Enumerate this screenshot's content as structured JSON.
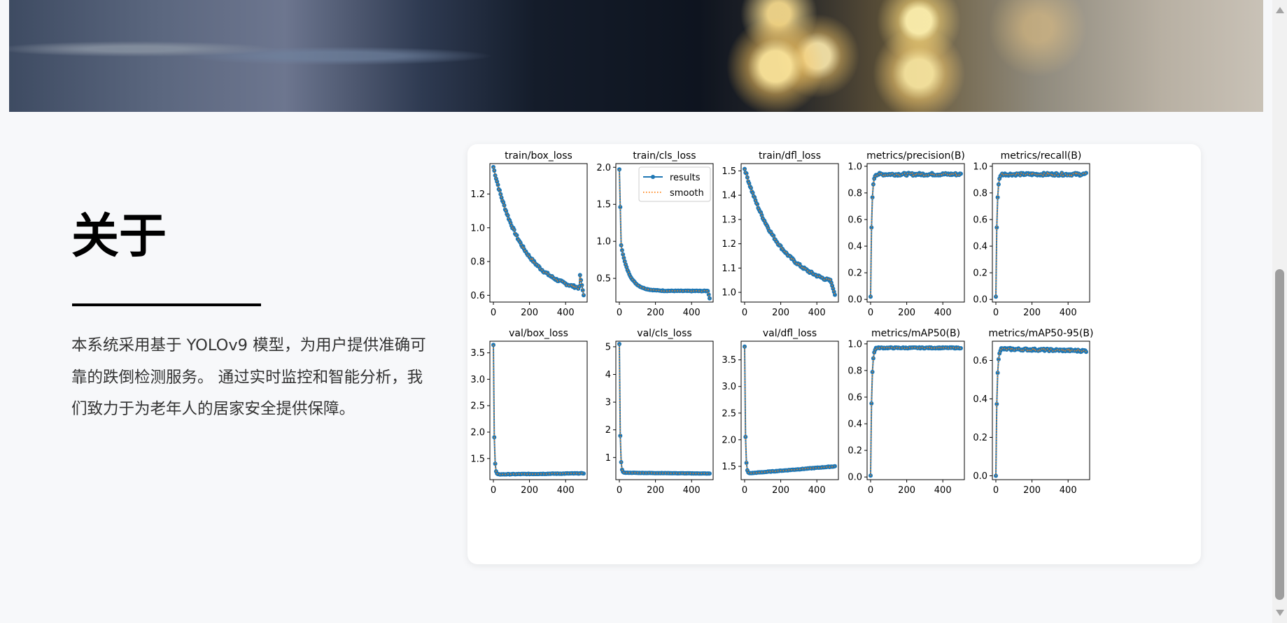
{
  "about": {
    "title": "关于",
    "description": "本系统采用基于 YOLOv9 模型，为用户提供准确可靠的跌倒检测服务。 通过实时监控和智能分析，我们致力于为老年人的居家安全提供保障。"
  },
  "colors": {
    "series": "#1f77b4",
    "smooth": "#ff7f0e",
    "page_background": "#f7f8fa"
  },
  "chart_data": [
    {
      "type": "line",
      "title": "train/box_loss",
      "xlim": [
        0,
        500
      ],
      "ylim": [
        0.56,
        1.38
      ],
      "xticks": [
        0,
        200,
        400
      ],
      "yticks": [
        0.6,
        0.8,
        1.0,
        1.2
      ],
      "shape": "decay",
      "start": 1.36,
      "end": 0.6,
      "rate": 0.006,
      "hook_to": 0.72,
      "drop_to": 0.6
    },
    {
      "type": "line",
      "title": "train/cls_loss",
      "xlim": [
        0,
        500
      ],
      "ylim": [
        0.18,
        2.05
      ],
      "xticks": [
        0,
        200,
        400
      ],
      "yticks": [
        0.5,
        1.0,
        1.5,
        2.0
      ],
      "shape": "fastdecay",
      "start": 1.97,
      "end": 0.33,
      "mid": 0.55,
      "drop_to": 0.23,
      "legend": {
        "position": "top-right",
        "entries": [
          "results",
          "smooth"
        ]
      }
    },
    {
      "type": "line",
      "title": "train/dfl_loss",
      "xlim": [
        0,
        500
      ],
      "ylim": [
        0.96,
        1.53
      ],
      "xticks": [
        0,
        200,
        400
      ],
      "yticks": [
        1.0,
        1.1,
        1.2,
        1.3,
        1.4,
        1.5
      ],
      "shape": "decay",
      "start": 1.51,
      "end": 1.0,
      "rate": 0.005,
      "hook_to": 1.04,
      "drop_to": 0.99
    },
    {
      "type": "line",
      "title": "metrics/precision(B)",
      "xlim": [
        0,
        500
      ],
      "ylim": [
        -0.02,
        1.02
      ],
      "xticks": [
        0,
        200,
        400
      ],
      "yticks": [
        0.0,
        0.2,
        0.4,
        0.6,
        0.8,
        1.0
      ],
      "shape": "rise",
      "start": 0.02,
      "plateau": 0.94,
      "noise": 0.01
    },
    {
      "type": "line",
      "title": "metrics/recall(B)",
      "xlim": [
        0,
        500
      ],
      "ylim": [
        -0.02,
        1.02
      ],
      "xticks": [
        0,
        200,
        400
      ],
      "yticks": [
        0.0,
        0.2,
        0.4,
        0.6,
        0.8,
        1.0
      ],
      "shape": "rise",
      "start": 0.02,
      "plateau": 0.94,
      "noise": 0.01
    },
    {
      "type": "line",
      "title": "val/box_loss",
      "xlim": [
        0,
        500
      ],
      "ylim": [
        1.1,
        3.72
      ],
      "xticks": [
        0,
        200,
        400
      ],
      "yticks": [
        1.5,
        2.0,
        2.5,
        3.0,
        3.5
      ],
      "shape": "spike",
      "start": 3.65,
      "floor": 1.2,
      "end": 1.22
    },
    {
      "type": "line",
      "title": "val/cls_loss",
      "xlim": [
        0,
        500
      ],
      "ylim": [
        0.2,
        5.2
      ],
      "xticks": [
        0,
        200,
        400
      ],
      "yticks": [
        1,
        2,
        3,
        4,
        5
      ],
      "shape": "spike",
      "start": 5.1,
      "floor": 0.45,
      "end": 0.42
    },
    {
      "type": "line",
      "title": "val/dfl_loss",
      "xlim": [
        0,
        500
      ],
      "ylim": [
        1.25,
        3.85
      ],
      "xticks": [
        0,
        200,
        400
      ],
      "yticks": [
        1.5,
        2.0,
        2.5,
        3.0,
        3.5
      ],
      "shape": "spike",
      "start": 3.75,
      "floor": 1.37,
      "end": 1.5
    },
    {
      "type": "line",
      "title": "metrics/mAP50(B)",
      "xlim": [
        0,
        500
      ],
      "ylim": [
        -0.02,
        1.02
      ],
      "xticks": [
        0,
        200,
        400
      ],
      "yticks": [
        0.0,
        0.2,
        0.4,
        0.6,
        0.8,
        1.0
      ],
      "shape": "rise",
      "start": 0.01,
      "plateau": 0.97,
      "noise": 0.004
    },
    {
      "type": "line",
      "title": "metrics/mAP50-95(B)",
      "xlim": [
        0,
        500
      ],
      "ylim": [
        -0.02,
        0.7
      ],
      "xticks": [
        0,
        200,
        400
      ],
      "yticks": [
        0.0,
        0.2,
        0.4,
        0.6
      ],
      "shape": "rise",
      "start": 0.0,
      "plateau": 0.66,
      "end": 0.65,
      "noise": 0.006
    }
  ]
}
